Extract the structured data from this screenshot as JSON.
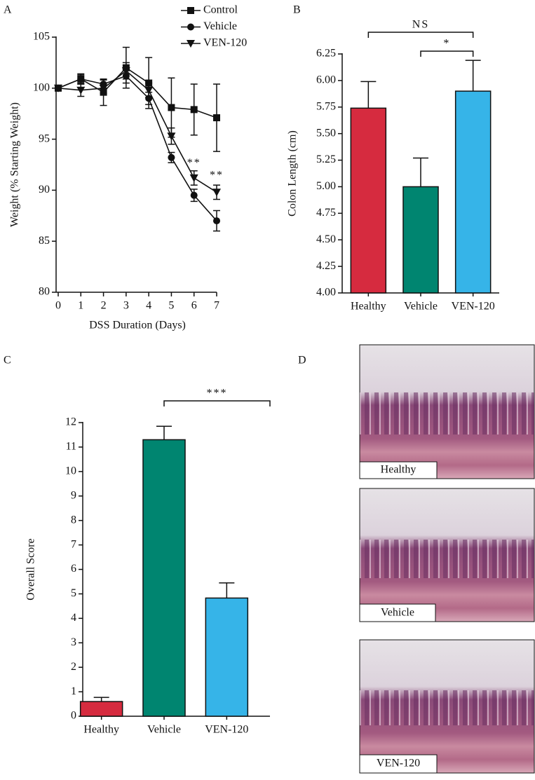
{
  "chart_data": [
    {
      "letter": "A",
      "type": "line",
      "xlabel": "DSS Duration (Days)",
      "ylabel": "Weight (% Starting Weight)",
      "x": [
        0,
        1,
        2,
        3,
        4,
        5,
        6,
        7
      ],
      "xlim": [
        0,
        7
      ],
      "xticks": [
        0,
        1,
        2,
        3,
        4,
        5,
        6,
        7
      ],
      "ylim": [
        80,
        105
      ],
      "yticks": [
        80,
        85,
        90,
        95,
        100,
        105
      ],
      "series": [
        {
          "name": "Control",
          "marker": "square",
          "color": "#111111",
          "values": [
            100,
            100.9,
            99.6,
            102,
            100.5,
            98.1,
            97.9,
            97.1
          ],
          "errors": [
            0.2,
            0.5,
            1.3,
            2,
            2.5,
            2.9,
            2.5,
            3.3
          ]
        },
        {
          "name": "Vehicle",
          "marker": "circle",
          "color": "#111111",
          "values": [
            100,
            100.9,
            100.4,
            101.2,
            99,
            93.2,
            89.5,
            87
          ],
          "errors": [
            0.2,
            0.4,
            0.4,
            0.7,
            0.6,
            0.5,
            0.6,
            1
          ]
        },
        {
          "name": "VEN-120",
          "marker": "triangle-down",
          "color": "#111111",
          "values": [
            100,
            99.8,
            100,
            101.7,
            99.8,
            95.3,
            91.2,
            89.8
          ],
          "errors": [
            0.2,
            0.6,
            0.5,
            0.8,
            0.7,
            0.8,
            0.7,
            0.7
          ]
        }
      ],
      "annotations": [
        {
          "text": "**",
          "x": 6,
          "y": 92.6
        },
        {
          "text": "**",
          "x": 7,
          "y": 91.4
        }
      ]
    },
    {
      "letter": "B",
      "type": "bar",
      "ylabel": "Colon Length (cm)",
      "categories": [
        "Healthy",
        "Vehicle",
        "VEN-120"
      ],
      "colors": [
        "#d62b3f",
        "#008570",
        "#36b4e8"
      ],
      "values": [
        5.74,
        5,
        5.9
      ],
      "errors": [
        0.25,
        0.27,
        0.29
      ],
      "ylim": [
        4,
        6.25
      ],
      "yticks": [
        {
          "value": 4,
          "label": "4.00"
        },
        4.25,
        {
          "value": 4.5,
          "label": "4.50"
        },
        4.75,
        {
          "value": 5,
          "label": "5.00"
        },
        5.25,
        {
          "value": 5.5,
          "label": "5.50"
        },
        5.75,
        {
          "value": 6,
          "label": "6.00"
        },
        6.25
      ],
      "brackets": [
        {
          "text": "NS",
          "from": 0,
          "to": 2
        },
        {
          "text": "*",
          "from": 1,
          "to": 2
        }
      ]
    },
    {
      "letter": "C",
      "type": "bar",
      "ylabel": "Overall Score",
      "categories": [
        "Healthy",
        "Vehicle",
        "VEN-120"
      ],
      "colors": [
        "#d62b3f",
        "#008570",
        "#36b4e8"
      ],
      "values": [
        0.6,
        11.3,
        4.83
      ],
      "errors": [
        0.17,
        0.55,
        0.62
      ],
      "ylim": [
        0,
        12
      ],
      "yticks": [
        0,
        1,
        2,
        3,
        4,
        5,
        6,
        7,
        8,
        9,
        10,
        11,
        12
      ],
      "brackets": [
        {
          "text": "***",
          "from": 1,
          "to": 2
        }
      ]
    }
  ],
  "panel_d": {
    "letter": "D",
    "images": [
      {
        "label": "Healthy"
      },
      {
        "label": "Vehicle"
      },
      {
        "label": "VEN-120"
      }
    ]
  }
}
